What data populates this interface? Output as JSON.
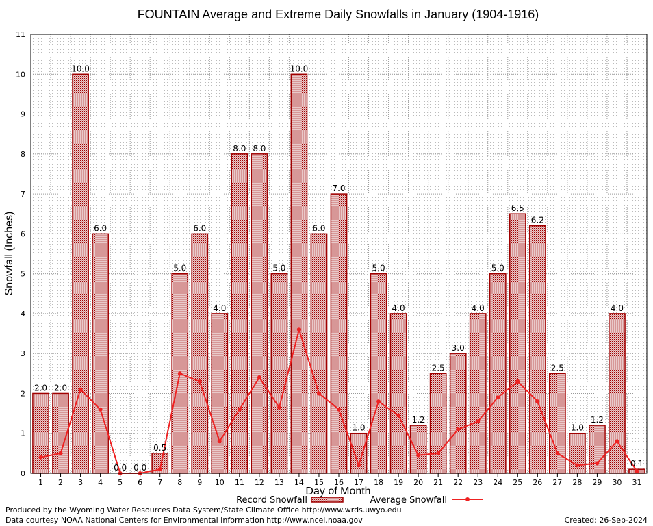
{
  "chart_data": {
    "type": "bar",
    "title": "FOUNTAIN Average and Extreme Daily Snowfalls in January (1904-1916)",
    "xlabel": "Day of Month",
    "ylabel": "Snowfall (Inches)",
    "ylim": [
      0,
      11
    ],
    "yticks": [
      0,
      1,
      2,
      3,
      4,
      5,
      6,
      7,
      8,
      9,
      10,
      11
    ],
    "grid": true,
    "categories": [
      "1",
      "2",
      "3",
      "4",
      "5",
      "6",
      "7",
      "8",
      "9",
      "10",
      "11",
      "12",
      "13",
      "14",
      "15",
      "16",
      "17",
      "18",
      "19",
      "20",
      "21",
      "22",
      "23",
      "24",
      "25",
      "26",
      "27",
      "28",
      "29",
      "30",
      "31"
    ],
    "series": [
      {
        "name": "Record Snowfall",
        "kind": "bar",
        "color": "#a00000",
        "values": [
          2.0,
          2.0,
          10.0,
          6.0,
          0.0,
          0.0,
          0.5,
          5.0,
          6.0,
          4.0,
          8.0,
          8.0,
          5.0,
          10.0,
          6.0,
          7.0,
          1.0,
          5.0,
          4.0,
          1.2,
          2.5,
          3.0,
          4.0,
          5.0,
          6.5,
          6.2,
          2.5,
          1.0,
          1.2,
          4.0,
          0.1
        ],
        "labels": [
          "2.0",
          "2.0",
          "10.0",
          "6.0",
          "0.0",
          "0.0",
          "0.5",
          "5.0",
          "6.0",
          "4.0",
          "8.0",
          "8.0",
          "5.0",
          "10.0",
          "6.0",
          "7.0",
          "1.0",
          "5.0",
          "4.0",
          "1.2",
          "2.5",
          "3.0",
          "4.0",
          "5.0",
          "6.5",
          "6.2",
          "2.5",
          "1.0",
          "1.2",
          "4.0",
          "0.1"
        ]
      },
      {
        "name": "Average Snowfall",
        "kind": "line",
        "color": "#ee2222",
        "values": [
          0.4,
          0.5,
          2.1,
          1.6,
          0.0,
          0.0,
          0.1,
          2.5,
          2.3,
          0.8,
          1.6,
          2.4,
          1.65,
          3.6,
          2.0,
          1.6,
          0.2,
          1.8,
          1.45,
          0.45,
          0.5,
          1.1,
          1.3,
          1.9,
          2.3,
          1.8,
          0.5,
          0.2,
          0.25,
          0.8,
          0.05
        ]
      }
    ],
    "legend_position": "bottom"
  },
  "footer": {
    "line1": "Produced by the Wyoming Water Resources Data System/State Climate Office http://www.wrds.uwyo.edu",
    "line2": "Data courtesy NOAA National Centers for Environmental Information http://www.ncei.noaa.gov",
    "created": "Created:  26-Sep-2024"
  }
}
